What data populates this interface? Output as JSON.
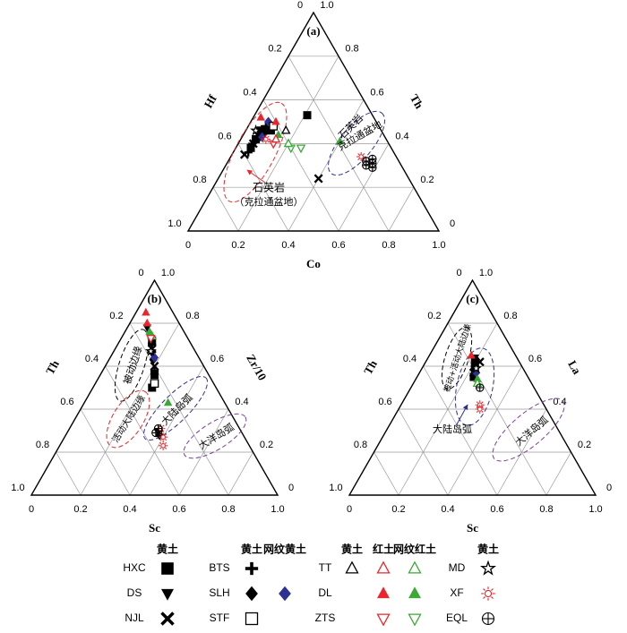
{
  "chart_data": [
    {
      "type": "ternary",
      "panel": "(a)",
      "axes": {
        "left": {
          "label": "Hf",
          "ticks": [
            0,
            0.2,
            0.4,
            0.6,
            0.8,
            {
              "value": 1,
              "label": "1.0"
            }
          ]
        },
        "right": {
          "label": "Th",
          "ticks": [
            0,
            0.2,
            0.4,
            0.6,
            0.8,
            {
              "value": 1,
              "label": "1.0"
            }
          ]
        },
        "bottom": {
          "label": "Co",
          "ticks": [
            0,
            0.2,
            0.4,
            0.6,
            0.8,
            {
              "value": 1,
              "label": "1.0"
            }
          ]
        }
      },
      "annotations": [
        {
          "text": "石英岩",
          "color": "#e8262b"
        },
        {
          "text": "（克拉通盆地）",
          "color": "#e8262b"
        },
        {
          "text": "石英岩",
          "color": "#2e3192"
        },
        {
          "text": "克拉通盆地",
          "color": "#2e3192"
        }
      ],
      "series": [
        {
          "marker": "square",
          "color": "#000000",
          "points": [
            [
              0.48,
              0.46,
              0.06
            ],
            [
              0.52,
              0.42,
              0.06
            ],
            [
              0.26,
              0.53,
              0.21
            ],
            [
              0.44,
              0.46,
              0.1
            ],
            [
              0.56,
              0.38,
              0.06
            ]
          ]
        },
        {
          "marker": "triangle-down",
          "color": "#000000",
          "points": [
            [
              0.5,
              0.44,
              0.06
            ],
            [
              0.55,
              0.39,
              0.06
            ],
            [
              0.46,
              0.47,
              0.07
            ]
          ]
        },
        {
          "marker": "x",
          "color": "#000000",
          "points": [
            [
              0.6,
              0.35,
              0.05
            ],
            [
              0.36,
              0.24,
              0.4
            ],
            [
              0.54,
              0.4,
              0.06
            ]
          ]
        },
        {
          "marker": "plus",
          "color": "#000000",
          "points": [
            [
              0.45,
              0.48,
              0.07
            ],
            [
              0.5,
              0.43,
              0.07
            ],
            [
              0.58,
              0.36,
              0.06
            ]
          ]
        },
        {
          "marker": "diamond",
          "color": "#000000",
          "points": [
            [
              0.47,
              0.45,
              0.08
            ],
            [
              0.53,
              0.41,
              0.06
            ]
          ]
        },
        {
          "marker": "diamond",
          "color": "#2e3192",
          "points": [
            [
              0.49,
              0.43,
              0.08
            ],
            [
              0.43,
              0.5,
              0.07
            ]
          ]
        },
        {
          "marker": "square-open",
          "color": "#000000",
          "points": [
            [
              0.42,
              0.48,
              0.1
            ]
          ]
        },
        {
          "marker": "triangle-open",
          "color": "#000000",
          "points": [
            [
              0.38,
              0.46,
              0.16
            ]
          ]
        },
        {
          "marker": "triangle",
          "color": "#e8262b",
          "points": [
            [
              0.4,
              0.5,
              0.1
            ],
            [
              0.45,
              0.52,
              0.03
            ]
          ]
        },
        {
          "marker": "triangle",
          "color": "#3aa935",
          "points": [
            [
              0.42,
              0.44,
              0.14
            ],
            [
              0.19,
              0.41,
              0.4
            ]
          ]
        },
        {
          "marker": "triangle-down-open",
          "color": "#e8262b",
          "points": [
            [
              0.46,
              0.4,
              0.14
            ]
          ]
        },
        {
          "marker": "triangle-down-open",
          "color": "#3aa935",
          "points": [
            [
              0.4,
              0.38,
              0.22
            ],
            [
              0.36,
              0.38,
              0.26
            ]
          ]
        },
        {
          "marker": "triangle-open",
          "color": "#e8262b",
          "points": [
            [
              0.44,
              0.42,
              0.14
            ]
          ]
        },
        {
          "marker": "triangle-open",
          "color": "#3aa935",
          "points": [
            [
              0.4,
              0.4,
              0.2
            ]
          ]
        },
        {
          "marker": "star-open",
          "color": "#000000",
          "points": [
            [
              0.5,
              0.46,
              0.04
            ]
          ]
        },
        {
          "marker": "sun",
          "color": "#e8262b",
          "points": [
            [
              0.14,
              0.34,
              0.52
            ],
            [
              0.48,
              0.42,
              0.1
            ]
          ]
        },
        {
          "marker": "circle-plus",
          "color": "#000000",
          "points": [
            [
              0.13,
              0.32,
              0.55
            ],
            [
              0.11,
              0.31,
              0.58
            ],
            [
              0.12,
              0.29,
              0.59
            ],
            [
              0.1,
              0.33,
              0.57
            ],
            [
              0.14,
              0.3,
              0.56
            ]
          ]
        }
      ]
    },
    {
      "type": "ternary",
      "panel": "(b)",
      "axes": {
        "left": {
          "label": "Th",
          "ticks": [
            0,
            0.2,
            0.4,
            0.6,
            0.8,
            {
              "value": 1,
              "label": "1.0"
            }
          ]
        },
        "right": {
          "label": "Zr/10",
          "ticks": [
            0,
            0.2,
            0.4,
            0.6,
            0.8,
            {
              "value": 1,
              "label": "1.0"
            }
          ]
        },
        "bottom": {
          "label": "Sc",
          "ticks": [
            0,
            0.2,
            0.4,
            0.6,
            0.8,
            {
              "value": 1,
              "label": "1.0"
            }
          ]
        }
      },
      "annotations": [
        {
          "text": "被动边缘",
          "color": "#000000"
        },
        {
          "text": "活动大陆边缘",
          "color": "#e8262b"
        },
        {
          "text": "大陆岛弧",
          "color": "#2e3192"
        },
        {
          "text": "大洋岛弧",
          "color": "#7b3f98"
        }
      ],
      "series": [
        {
          "marker": "square",
          "color": "#000000",
          "points": [
            [
              0.15,
              0.72,
              0.13
            ],
            [
              0.26,
              0.5,
              0.24
            ],
            [
              0.22,
              0.56,
              0.22
            ]
          ]
        },
        {
          "marker": "triangle-down",
          "color": "#000000",
          "points": [
            [
              0.14,
              0.78,
              0.08
            ],
            [
              0.18,
              0.66,
              0.16
            ]
          ]
        },
        {
          "marker": "x",
          "color": "#000000",
          "points": [
            [
              0.17,
              0.68,
              0.15
            ],
            [
              0.2,
              0.6,
              0.2
            ]
          ]
        },
        {
          "marker": "plus",
          "color": "#000000",
          "points": [
            [
              0.16,
              0.7,
              0.14
            ],
            [
              0.21,
              0.58,
              0.21
            ]
          ]
        },
        {
          "marker": "diamond",
          "color": "#000000",
          "points": [
            [
              0.19,
              0.63,
              0.18
            ],
            [
              0.33,
              0.3,
              0.37
            ],
            [
              0.34,
              0.28,
              0.38
            ]
          ]
        },
        {
          "marker": "diamond",
          "color": "#2e3192",
          "points": [
            [
              0.18,
              0.64,
              0.18
            ]
          ]
        },
        {
          "marker": "square-open",
          "color": "#000000",
          "points": [
            [
              0.24,
              0.52,
              0.24
            ]
          ]
        },
        {
          "marker": "triangle-open",
          "color": "#3aa935",
          "points": [
            [
              0.14,
              0.74,
              0.12
            ]
          ]
        },
        {
          "marker": "triangle",
          "color": "#e8262b",
          "points": [
            [
              0.11,
              0.85,
              0.04
            ],
            [
              0.13,
              0.8,
              0.07
            ]
          ]
        },
        {
          "marker": "triangle",
          "color": "#3aa935",
          "points": [
            [
              0.14,
              0.76,
              0.1
            ],
            [
              0.23,
              0.43,
              0.34
            ]
          ]
        },
        {
          "marker": "triangle-down-open",
          "color": "#e8262b",
          "points": [
            [
              0.15,
              0.73,
              0.12
            ]
          ]
        },
        {
          "marker": "star-open",
          "color": "#000000",
          "points": [
            [
              0.18,
              0.67,
              0.15
            ]
          ]
        },
        {
          "marker": "sun",
          "color": "#e8262b",
          "points": [
            [
              0.33,
              0.27,
              0.4
            ],
            [
              0.35,
              0.23,
              0.42
            ],
            [
              0.32,
              0.31,
              0.37
            ]
          ]
        },
        {
          "marker": "circle-plus",
          "color": "#000000",
          "points": [
            [
              0.33,
              0.31,
              0.36
            ],
            [
              0.35,
              0.29,
              0.36
            ]
          ]
        }
      ]
    },
    {
      "type": "ternary",
      "panel": "(c)",
      "axes": {
        "left": {
          "label": "Th",
          "ticks": [
            0,
            0.2,
            0.4,
            0.6,
            0.8,
            {
              "value": 1,
              "label": "1.0"
            }
          ]
        },
        "right": {
          "label": "La",
          "ticks": [
            0,
            0.2,
            0.4,
            0.6,
            0.8,
            {
              "value": 1,
              "label": "1.0"
            }
          ]
        },
        "bottom": {
          "label": "Sc",
          "ticks": [
            0,
            0.2,
            0.4,
            0.6,
            0.8,
            {
              "value": 1,
              "label": "1.0"
            }
          ]
        }
      },
      "annotations": [
        {
          "text": "被动+活动大陆边缘",
          "color": "#000000"
        },
        {
          "text": "大陆岛弧",
          "color": "#2e3192"
        },
        {
          "text": "大洋岛弧",
          "color": "#7b3f98"
        }
      ],
      "series": [
        {
          "marker": "square",
          "color": "#000000",
          "points": [
            [
              0.18,
              0.62,
              0.2
            ],
            [
              0.22,
              0.55,
              0.23
            ],
            [
              0.2,
              0.58,
              0.22
            ]
          ]
        },
        {
          "marker": "triangle-down",
          "color": "#000000",
          "points": [
            [
              0.17,
              0.64,
              0.19
            ]
          ]
        },
        {
          "marker": "x",
          "color": "#000000",
          "points": [
            [
              0.21,
              0.57,
              0.22
            ],
            [
              0.16,
              0.62,
              0.22
            ]
          ]
        },
        {
          "marker": "plus",
          "color": "#000000",
          "points": [
            [
              0.19,
              0.6,
              0.21
            ]
          ]
        },
        {
          "marker": "diamond",
          "color": "#000000",
          "points": [
            [
              0.17,
              0.63,
              0.2
            ]
          ]
        },
        {
          "marker": "diamond",
          "color": "#2e3192",
          "points": [
            [
              0.2,
              0.57,
              0.23
            ]
          ]
        },
        {
          "marker": "triangle",
          "color": "#e8262b",
          "points": [
            [
              0.18,
              0.65,
              0.17
            ]
          ]
        },
        {
          "marker": "triangle",
          "color": "#3aa935",
          "points": [
            [
              0.21,
              0.54,
              0.25
            ]
          ]
        },
        {
          "marker": "triangle-open",
          "color": "#3aa935",
          "points": [
            [
              0.22,
              0.52,
              0.26
            ]
          ]
        },
        {
          "marker": "star-open",
          "color": "#000000",
          "points": [
            [
              0.19,
              0.59,
              0.22
            ]
          ]
        },
        {
          "marker": "sun",
          "color": "#e8262b",
          "points": [
            [
              0.26,
              0.42,
              0.32
            ],
            [
              0.27,
              0.4,
              0.33
            ]
          ]
        },
        {
          "marker": "circle-plus",
          "color": "#000000",
          "points": [
            [
              0.22,
              0.5,
              0.28
            ]
          ]
        }
      ]
    }
  ],
  "legend": [
    {
      "headers": [
        "黄土"
      ],
      "rows": [
        {
          "name": "HXC",
          "symbols": [
            {
              "marker": "square",
              "color": "#000000"
            }
          ]
        },
        {
          "name": "DS",
          "symbols": [
            {
              "marker": "triangle-down",
              "color": "#000000"
            }
          ]
        },
        {
          "name": "NJL",
          "symbols": [
            {
              "marker": "x",
              "color": "#000000"
            }
          ]
        }
      ]
    },
    {
      "headers": [
        "黄土",
        "网纹黄土"
      ],
      "rows": [
        {
          "name": "BTS",
          "symbols": [
            {
              "marker": "plus",
              "color": "#000000"
            }
          ]
        },
        {
          "name": "SLH",
          "symbols": [
            {
              "marker": "diamond",
              "color": "#000000"
            },
            {
              "marker": "diamond",
              "color": "#2e3192"
            }
          ]
        },
        {
          "name": "STF",
          "symbols": [
            {
              "marker": "square-open",
              "color": "#000000"
            }
          ]
        }
      ]
    },
    {
      "headers": [
        "黄土",
        "红土",
        "网纹红土"
      ],
      "rows": [
        {
          "name": "TT",
          "symbols": [
            {
              "marker": "triangle-open",
              "color": "#000000"
            },
            {
              "marker": "triangle-open",
              "color": "#e8262b"
            },
            {
              "marker": "triangle-open",
              "color": "#3aa935"
            }
          ]
        },
        {
          "name": "DL",
          "symbols": [
            null,
            {
              "marker": "triangle",
              "color": "#e8262b"
            },
            {
              "marker": "triangle",
              "color": "#3aa935"
            }
          ]
        },
        {
          "name": "ZTS",
          "symbols": [
            null,
            {
              "marker": "triangle-down-open",
              "color": "#e8262b"
            },
            {
              "marker": "triangle-down-open",
              "color": "#3aa935"
            }
          ]
        }
      ]
    },
    {
      "headers": [
        "黄土"
      ],
      "rows": [
        {
          "name": "MD",
          "symbols": [
            {
              "marker": "star-open",
              "color": "#000000"
            }
          ]
        },
        {
          "name": "XF",
          "symbols": [
            {
              "marker": "sun",
              "color": "#e8262b"
            }
          ]
        },
        {
          "name": "EQL",
          "symbols": [
            {
              "marker": "circle-plus",
              "color": "#000000"
            }
          ]
        }
      ]
    }
  ]
}
